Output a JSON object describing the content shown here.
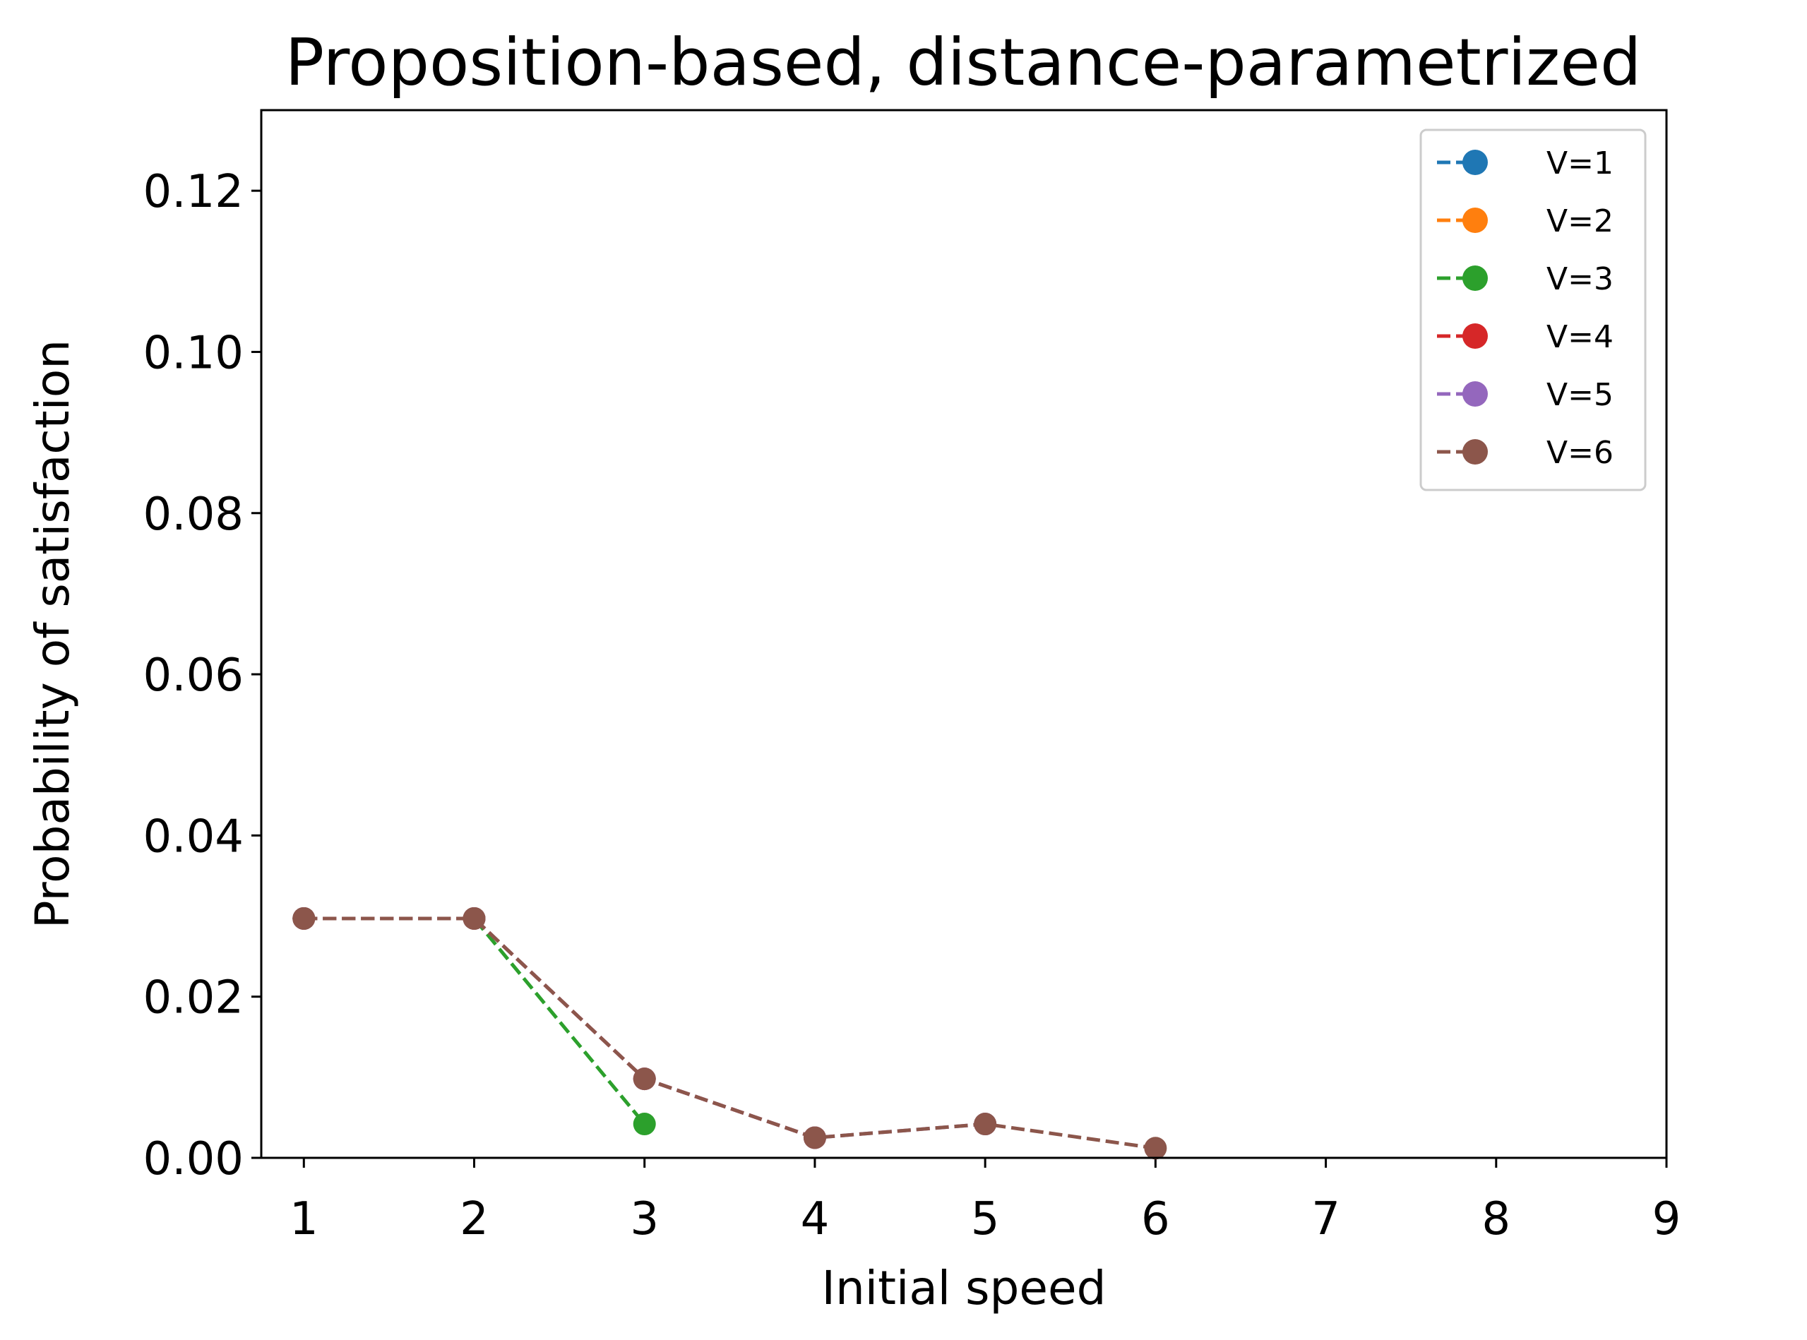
{
  "chart_data": {
    "type": "line",
    "title": "Proposition-based, distance-parametrized",
    "xlabel": "Initial speed",
    "ylabel": "Probability of satisfaction",
    "xlim": [
      0.75,
      9
    ],
    "ylim": [
      0,
      0.13
    ],
    "xticks": [
      1,
      2,
      3,
      4,
      5,
      6,
      7,
      8,
      9
    ],
    "xtick_labels": [
      "1",
      "2",
      "3",
      "4",
      "5",
      "6",
      "7",
      "8",
      "9"
    ],
    "yticks": [
      0,
      0.02,
      0.04,
      0.06,
      0.08,
      0.1,
      0.12
    ],
    "ytick_labels": [
      "0.00",
      "0.02",
      "0.04",
      "0.06",
      "0.08",
      "0.10",
      "0.12"
    ],
    "grid": false,
    "legend_position": "top-right",
    "line_style": "dashed",
    "marker": "circle",
    "series": [
      {
        "name": "V=1",
        "color": "#1f77b4",
        "x": [
          1
        ],
        "y": [
          0.0297
        ]
      },
      {
        "name": "V=2",
        "color": "#ff7f0e",
        "x": [
          1,
          2
        ],
        "y": [
          0.0297,
          0.0297
        ]
      },
      {
        "name": "V=3",
        "color": "#2ca02c",
        "x": [
          1,
          2,
          3
        ],
        "y": [
          0.0297,
          0.0297,
          0.0042
        ]
      },
      {
        "name": "V=4",
        "color": "#d62728",
        "x": [
          1,
          2,
          3,
          4
        ],
        "y": [
          0.0297,
          0.0297,
          0.0098,
          0.0025
        ]
      },
      {
        "name": "V=5",
        "color": "#9467bd",
        "x": [
          1,
          2,
          3,
          4,
          5
        ],
        "y": [
          0.0297,
          0.0297,
          0.0098,
          0.0025,
          0.0042
        ]
      },
      {
        "name": "V=6",
        "color": "#8c564b",
        "x": [
          1,
          2,
          3,
          4,
          5,
          6
        ],
        "y": [
          0.0297,
          0.0297,
          0.0098,
          0.0025,
          0.0042,
          0.0012
        ]
      }
    ]
  }
}
